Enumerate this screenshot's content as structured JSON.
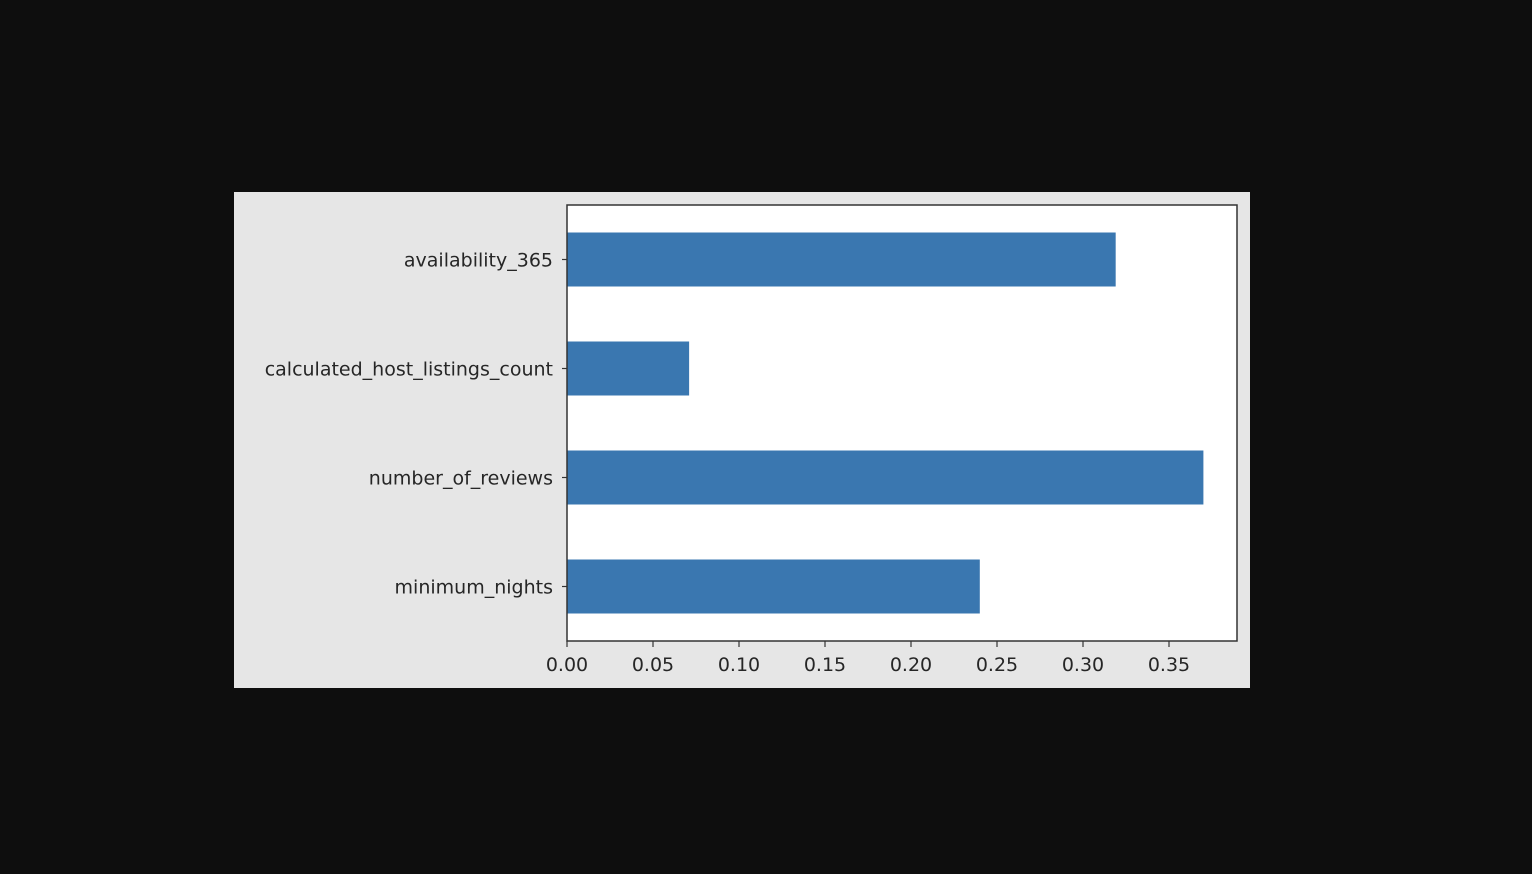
{
  "chart_data": {
    "type": "bar",
    "orientation": "horizontal",
    "categories": [
      "availability_365",
      "calculated_host_listings_count",
      "number_of_reviews",
      "minimum_nights"
    ],
    "values": [
      0.319,
      0.071,
      0.37,
      0.24
    ],
    "title": "",
    "xlabel": "",
    "ylabel": "",
    "xlim": [
      0.0,
      0.39
    ],
    "xticks": [
      0.0,
      0.05,
      0.1,
      0.15,
      0.2,
      0.25,
      0.3,
      0.35
    ],
    "xtick_labels": [
      "0.00",
      "0.05",
      "0.10",
      "0.15",
      "0.20",
      "0.25",
      "0.30",
      "0.35"
    ],
    "grid": false,
    "legend": "none",
    "bar_color": "#3a77b0",
    "axes_background": "#ffffff",
    "figure_background": "#e6e6e6",
    "page_background": "#0e0e0e"
  }
}
